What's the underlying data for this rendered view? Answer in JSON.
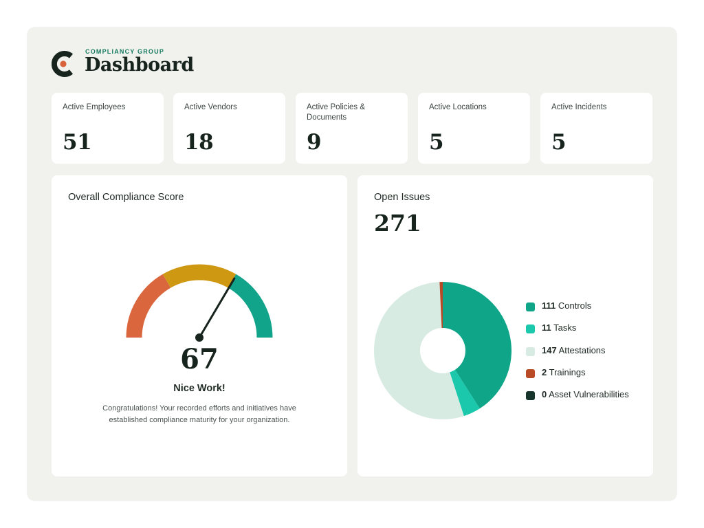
{
  "brand": {
    "company": "COMPLIANCY GROUP",
    "title": "Dashboard",
    "logo_icon": "compliancy-group-logo",
    "colors": {
      "dark": "#17231d",
      "accent": "#d9623a",
      "brand_green": "#157a5f"
    }
  },
  "stats": [
    {
      "label": "Active Employees",
      "value": "51"
    },
    {
      "label": "Active Vendors",
      "value": "18"
    },
    {
      "label": "Active Policies & Documents",
      "value": "9"
    },
    {
      "label": "Active Locations",
      "value": "5"
    },
    {
      "label": "Active Incidents",
      "value": "5"
    }
  ],
  "compliance": {
    "title": "Overall Compliance Score",
    "score": "67",
    "score_value": 67,
    "heading": "Nice Work!",
    "message": "Congratulations! Your recorded efforts and initiatives have established compliance maturity for your organization.",
    "gauge_colors": [
      "#d9663c",
      "#cf9812",
      "#11a48a"
    ]
  },
  "open_issues": {
    "title": "Open Issues",
    "total": "271",
    "legend": [
      {
        "count": "111",
        "label": "Controls",
        "color": "#0fa589"
      },
      {
        "count": "11",
        "label": "Tasks",
        "color": "#1cc8ab"
      },
      {
        "count": "147",
        "label": "Attestations",
        "color": "#d8ebe3"
      },
      {
        "count": "2",
        "label": "Trainings",
        "color": "#b84a26"
      },
      {
        "count": "0",
        "label": "Asset Vulnerabilities",
        "color": "#17352c"
      }
    ]
  },
  "chart_data": {
    "type": "pie",
    "categories": [
      "Controls",
      "Tasks",
      "Attestations",
      "Trainings",
      "Asset Vulnerabilities"
    ],
    "values": [
      111,
      11,
      147,
      2,
      0
    ],
    "colors": [
      "#0fa589",
      "#1cc8ab",
      "#d8ebe3",
      "#b84a26",
      "#17352c"
    ],
    "donut": true,
    "legend_position": "right"
  }
}
